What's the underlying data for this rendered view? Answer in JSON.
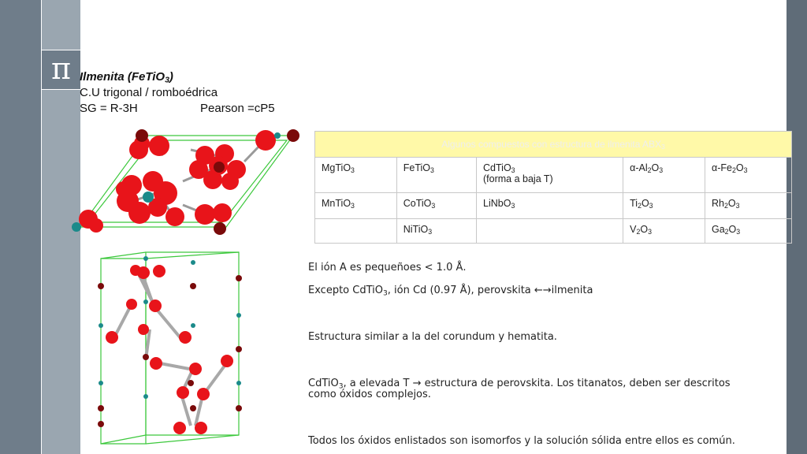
{
  "header": {
    "line1_prefix": "Ilmenita (FeTiO",
    "line1_sub": "3",
    "line1_suffix": ")",
    "line2": "C.U trigonal / romboédrica",
    "line3_sg": "SG = R-3H",
    "line3_pearson": "Pearson =cP5"
  },
  "logo": {
    "symbol": "π"
  },
  "table": {
    "title_prefix": "Algunos compuestos con estructura de ilmenita ABX",
    "title_sub": "3",
    "rows": [
      [
        {
          "pre": "MgTiO",
          "sub": "3",
          "post": "",
          "line2": ""
        },
        {
          "pre": "FeTiO",
          "sub": "3",
          "post": "",
          "line2": ""
        },
        {
          "pre": "CdTiO",
          "sub": "3",
          "post": "",
          "line2": "(forma a baja T)"
        },
        {
          "pre": "α-Al",
          "sub": "2",
          "post": "O",
          "sub2": "3",
          "line2": ""
        },
        {
          "pre": "α-Fe",
          "sub": "2",
          "post": "O",
          "sub2": "3",
          "line2": ""
        }
      ],
      [
        {
          "pre": "MnTiO",
          "sub": "3",
          "post": "",
          "line2": ""
        },
        {
          "pre": "CoTiO",
          "sub": "3",
          "post": "",
          "line2": ""
        },
        {
          "pre": "LiNbO",
          "sub": "3",
          "post": "",
          "line2": ""
        },
        {
          "pre": "Ti",
          "sub": "2",
          "post": "O",
          "sub2": "3",
          "line2": ""
        },
        {
          "pre": "Rh",
          "sub": "2",
          "post": "O",
          "sub2": "3",
          "line2": ""
        }
      ],
      [
        {
          "pre": "",
          "sub": "",
          "post": "",
          "line2": ""
        },
        {
          "pre": "NiTiO",
          "sub": "3",
          "post": "",
          "line2": ""
        },
        {
          "pre": "",
          "sub": "",
          "post": "",
          "line2": ""
        },
        {
          "pre": "V",
          "sub": "2",
          "post": "O",
          "sub2": "3",
          "line2": ""
        },
        {
          "pre": "Ga",
          "sub": "2",
          "post": "O",
          "sub2": "3",
          "line2": ""
        }
      ]
    ]
  },
  "paragraphs": {
    "p1": "El ión A   es pequeñoes < 1.0 Å.",
    "p2_prefix": "Excepto CdTiO",
    "p2_sub": "3",
    "p2_suffix": ",   ión Cd (0.97 Å), perovskita ←→ilmenita",
    "p3": "Estructura similar a la del corundum y hematita.",
    "p4_prefix": "CdTiO",
    "p4_sub": "3",
    "p4_suffix": ", a elevada T → estructura de perovskita. Los titanatos, deben ser descritos",
    "p4_line2": "como óxidos complejos.",
    "p5": "Todos los óxidos enlistados son isomorfos y la solución sólida entre ellos es común."
  },
  "colors": {
    "oxygen": "#e8141a",
    "iron": "#7a0a0a",
    "titanium": "#1b8a8a",
    "cell_edge": "#3cc83c",
    "table_header": "#fff9a8"
  }
}
